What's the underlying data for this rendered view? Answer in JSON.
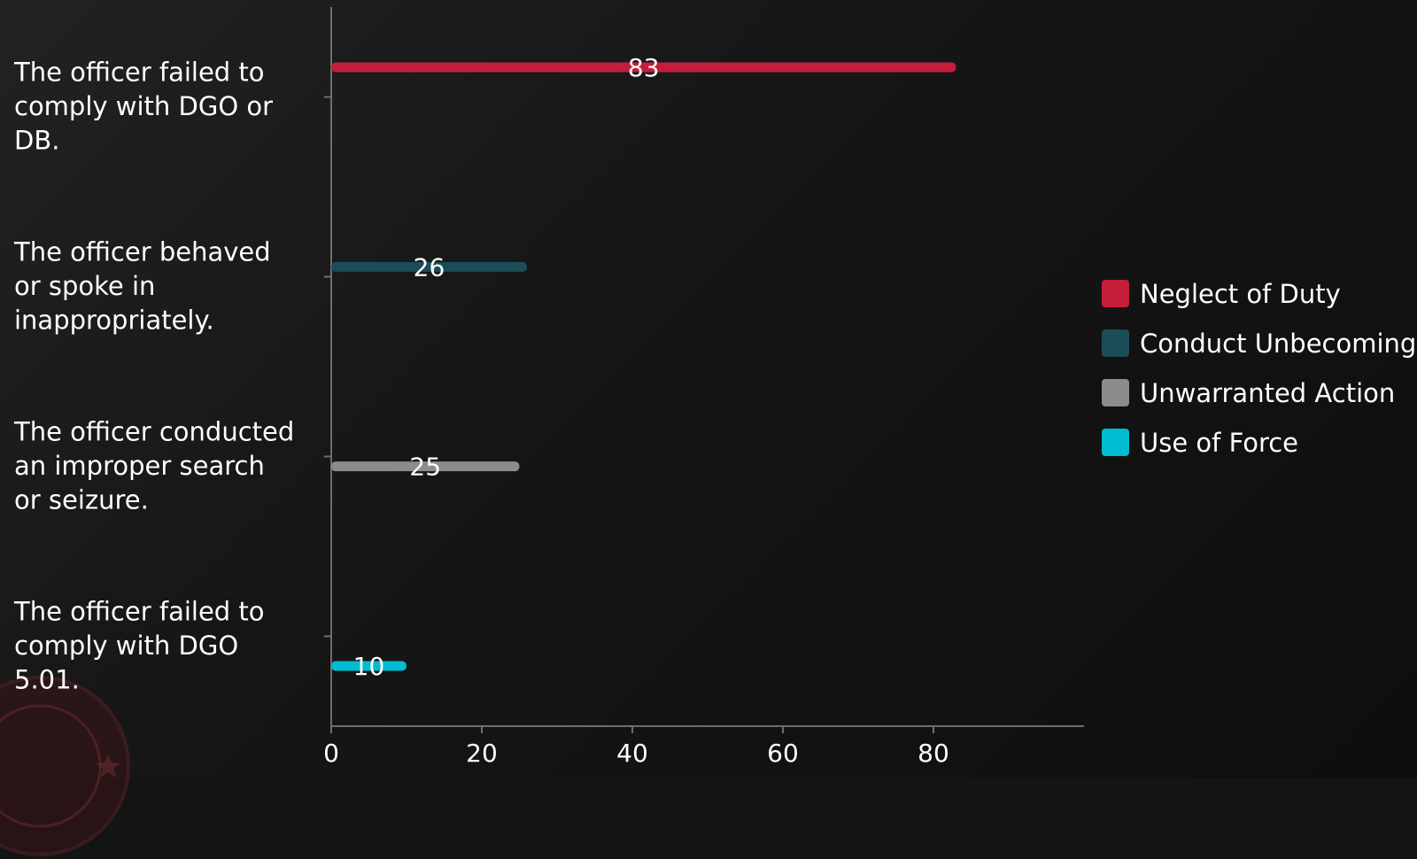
{
  "chart_data": {
    "type": "bar",
    "orientation": "horizontal",
    "categories": [
      "The officer failed to comply with DGO or DB.",
      "The officer behaved or spoke in inappropriately.",
      "The officer conducted an improper search or seizure.",
      "The officer failed to comply with DGO 5.01."
    ],
    "category_lines": [
      [
        "The officer failed to",
        "comply with DGO or",
        "DB."
      ],
      [
        "The officer behaved",
        "or spoke in",
        "inappropriately."
      ],
      [
        "The officer conducted",
        "an improper search",
        "or seizure."
      ],
      [
        "The officer failed to",
        "comply with DGO",
        "5.01."
      ]
    ],
    "series": [
      {
        "name": "Neglect of Duty",
        "color": "#c41e3a",
        "values": [
          83,
          0,
          0,
          0
        ]
      },
      {
        "name": "Conduct Unbecoming",
        "color": "#1b4d58",
        "values": [
          0,
          26,
          0,
          0
        ]
      },
      {
        "name": "Unwarranted Action",
        "color": "#8c8c8c",
        "values": [
          0,
          0,
          25,
          0
        ]
      },
      {
        "name": "Use of Force",
        "color": "#00bcd0",
        "values": [
          0,
          0,
          0,
          10
        ]
      }
    ],
    "xlim": [
      0,
      100
    ],
    "xticks": [
      0,
      20,
      40,
      60,
      80
    ],
    "grid": false,
    "legend_position": "right",
    "data_labels": true,
    "title": "",
    "xlabel": "",
    "ylabel": ""
  },
  "colors": {
    "axis": "#6e6e6e"
  }
}
